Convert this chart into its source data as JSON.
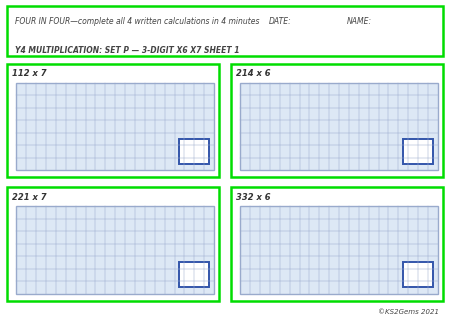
{
  "header_line1": "FOUR IN FOUR—complete all 4 written calculations in 4 minutes",
  "header_date": "DATE:",
  "header_name": "NAME:",
  "header_line2": "Y4 MULTIPLICATION: SET P — 3-DIGIT X6 X7 SHEET 1",
  "problems": [
    {
      "label": "112 x 7",
      "col": 0,
      "row": 0
    },
    {
      "label": "214 x 6",
      "col": 1,
      "row": 0
    },
    {
      "label": "221 x 7",
      "col": 0,
      "row": 1
    },
    {
      "label": "332 x 6",
      "col": 1,
      "row": 1
    }
  ],
  "border_color": "#00dd00",
  "grid_color": "#99aacc",
  "grid_bg": "#dde8f5",
  "answer_box_color": "#3355aa",
  "background": "#ffffff",
  "font_color": "#444444",
  "copyright": "©KS2Gems 2021",
  "grid_cols": 20,
  "grid_rows": 7,
  "header_font": 5.5,
  "label_font": 6.0,
  "copyright_font": 5.0
}
